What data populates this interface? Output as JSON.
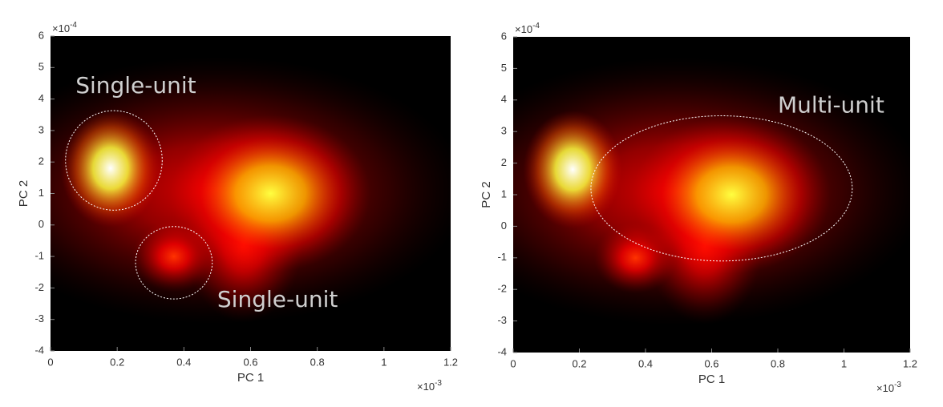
{
  "chart_data": [
    {
      "type": "heatmap",
      "xlabel": "PC 1",
      "ylabel": "PC 2",
      "x_scale_label": {
        "base": "×10",
        "exponent": "-3"
      },
      "y_scale_label": {
        "base": "×10",
        "exponent": "-4"
      },
      "xlim": [
        0,
        1.2
      ],
      "xticks": [
        0,
        0.2,
        0.4,
        0.6,
        0.8,
        1,
        1.2
      ],
      "ylim": [
        -4,
        6
      ],
      "yticks": [
        -4,
        -3,
        -2,
        -1,
        0,
        1,
        2,
        3,
        4,
        5,
        6
      ],
      "clusters": [
        {
          "x": 0.5,
          "y": 1.1,
          "sx": 0.3,
          "sy": 1.7,
          "peak": 0.3
        },
        {
          "x": 0.58,
          "y": -0.6,
          "sx": 0.07,
          "sy": 1.0,
          "peak": 0.35
        },
        {
          "x": 0.66,
          "y": 1.0,
          "sx": 0.12,
          "sy": 1.0,
          "peak": 0.75
        },
        {
          "x": 0.37,
          "y": -1.0,
          "sx": 0.05,
          "sy": 0.45,
          "peak": 0.4
        },
        {
          "x": 0.18,
          "y": 1.8,
          "sx": 0.06,
          "sy": 0.75,
          "peak": 1
        }
      ],
      "regions": [
        {
          "x": 0.19,
          "y": 2.05,
          "rx": 0.145,
          "ry": 1.58
        },
        {
          "x": 0.37,
          "y": -1.2,
          "rx": 0.115,
          "ry": 1.15
        }
      ],
      "annotations": [
        {
          "text": "Single-unit",
          "x": 0.075,
          "y": 4.4
        },
        {
          "text": "Single-unit",
          "x": 0.5,
          "y": -2.4
        }
      ]
    },
    {
      "type": "heatmap",
      "xlabel": "PC 1",
      "ylabel": "PC 2",
      "x_scale_label": {
        "base": "×10",
        "exponent": "-3"
      },
      "y_scale_label": {
        "base": "×10",
        "exponent": "-4"
      },
      "xlim": [
        0,
        1.2
      ],
      "xticks": [
        0,
        0.2,
        0.4,
        0.6,
        0.8,
        1,
        1.2
      ],
      "ylim": [
        -4,
        6
      ],
      "yticks": [
        -4,
        -3,
        -2,
        -1,
        0,
        1,
        2,
        3,
        4,
        5,
        6
      ],
      "clusters": [
        {
          "x": 0.5,
          "y": 1.1,
          "sx": 0.3,
          "sy": 1.7,
          "peak": 0.3
        },
        {
          "x": 0.58,
          "y": -0.6,
          "sx": 0.07,
          "sy": 1.0,
          "peak": 0.35
        },
        {
          "x": 0.66,
          "y": 1.0,
          "sx": 0.12,
          "sy": 1.0,
          "peak": 0.75
        },
        {
          "x": 0.37,
          "y": -1.0,
          "sx": 0.05,
          "sy": 0.45,
          "peak": 0.4
        },
        {
          "x": 0.18,
          "y": 1.8,
          "sx": 0.06,
          "sy": 0.75,
          "peak": 1
        }
      ],
      "regions": [
        {
          "x": 0.63,
          "y": 1.2,
          "rx": 0.395,
          "ry": 2.3
        }
      ],
      "annotations": [
        {
          "text": "Multi-unit",
          "x": 0.8,
          "y": 3.8
        }
      ]
    }
  ]
}
